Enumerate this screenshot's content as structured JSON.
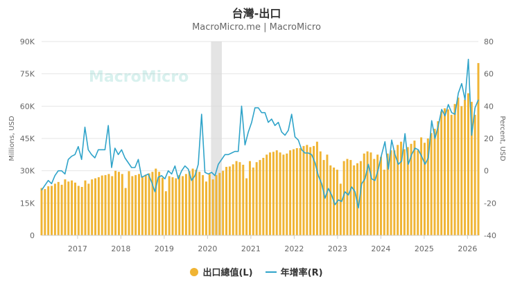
{
  "header": {
    "title": "台灣-出口",
    "subtitle": "MacroMicro.me | MacroMicro"
  },
  "watermark": "MacroMicro",
  "colors": {
    "bar": "#f0b433",
    "line": "#2ea3c9",
    "grid": "#e6e6e6",
    "shade": "#d8d8d8"
  },
  "chart_data": {
    "type": "bar+line",
    "title": "台灣-出口",
    "subtitle": "MacroMicro.me | MacroMicro",
    "x_start": 2016.17,
    "x_end": 2026.25,
    "x_ticks": [
      "2017",
      "2018",
      "2019",
      "2020",
      "2021",
      "2022",
      "2023",
      "2024",
      "2025",
      "2026"
    ],
    "y_left": {
      "label": "Millions, USD",
      "min": 0,
      "max": 90000,
      "ticks": [
        "0",
        "15K",
        "30K",
        "45K",
        "60K",
        "75K",
        "90K"
      ]
    },
    "y_right": {
      "label": "Percent, USD",
      "min": -40,
      "max": 80,
      "ticks": [
        "-40",
        "-20",
        "0",
        "20",
        "40",
        "60",
        "80"
      ]
    },
    "shaded_range": [
      2020.08,
      2020.33
    ],
    "series": [
      {
        "name": "出口總值(L)",
        "axis": "left",
        "type": "bar",
        "values": [
          22000,
          21500,
          22800,
          23000,
          24000,
          24800,
          23500,
          26000,
          25000,
          25500,
          24500,
          23000,
          22500,
          25500,
          24000,
          26000,
          26500,
          27000,
          27800,
          28000,
          28500,
          27500,
          30000,
          29500,
          28500,
          22000,
          29800,
          27500,
          28000,
          28500,
          27500,
          28200,
          28800,
          29500,
          31000,
          29500,
          26800,
          20500,
          27500,
          27000,
          26500,
          28000,
          27500,
          28500,
          29800,
          31000,
          30500,
          29500,
          28000,
          25000,
          28500,
          26000,
          28000,
          29000,
          30000,
          31800,
          32000,
          33000,
          34500,
          34000,
          32800,
          26500,
          34500,
          31500,
          34000,
          35000,
          36000,
          37500,
          38500,
          38800,
          39500,
          38500,
          37500,
          38000,
          39500,
          40000,
          40500,
          40500,
          41500,
          42000,
          41000,
          41500,
          43500,
          39000,
          35000,
          37500,
          32500,
          31500,
          30500,
          24000,
          34500,
          35500,
          35000,
          32500,
          33500,
          34500,
          38000,
          39000,
          38500,
          35500,
          37500,
          36500,
          30500,
          38000,
          39500,
          39500,
          42000,
          43500,
          40000,
          41000,
          42500,
          44000,
          39500,
          45500,
          43000,
          45000,
          47500,
          49500,
          53000,
          57500,
          59000,
          58500,
          56000,
          61000,
          64000,
          60000,
          63000,
          66000,
          62000,
          56000,
          80000
        ]
      },
      {
        "name": "年增率(R)",
        "axis": "right",
        "type": "line",
        "values": [
          -12,
          -9,
          -6,
          -8,
          -3,
          0,
          0,
          -2,
          7,
          9,
          10,
          15,
          7,
          27,
          13,
          10,
          8,
          13,
          13,
          13,
          28,
          2,
          14,
          10,
          13,
          8,
          5,
          2,
          2,
          7,
          -4,
          -3,
          -2,
          -7,
          -13,
          -4,
          -3,
          -5,
          0,
          -2,
          3,
          -5,
          0,
          3,
          1,
          -6,
          -3,
          4,
          35,
          -1,
          -2,
          -1,
          -3,
          4,
          7,
          10,
          10,
          11,
          12,
          12,
          40,
          16,
          24,
          30,
          39,
          39,
          36,
          36,
          30,
          32,
          28,
          30,
          24,
          22,
          25,
          35,
          21,
          19,
          13,
          11,
          11,
          10,
          5,
          -3,
          -8,
          -17,
          -11,
          -15,
          -21,
          -18,
          -19,
          -13,
          -15,
          -10,
          -13,
          -23,
          -8,
          -5,
          4,
          -5,
          -6,
          1,
          10,
          18,
          1,
          19,
          10,
          4,
          6,
          23,
          4,
          10,
          14,
          13,
          9,
          4,
          8,
          31,
          20,
          28,
          38,
          34,
          41,
          36,
          35,
          48,
          54,
          44,
          69,
          22,
          39,
          44
        ]
      }
    ]
  }
}
